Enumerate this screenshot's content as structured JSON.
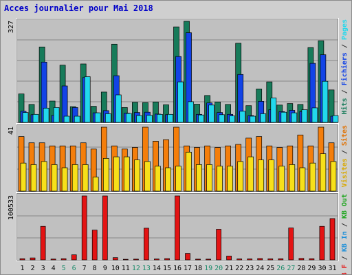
{
  "title": "Acces journalier pour Mai 2018",
  "colors": {
    "title": "#0000c8",
    "background": "#cfcfcf",
    "plot": "#c0c0c0",
    "gridline": "#888888",
    "visits": "#177b5a",
    "pages": "#1243e6",
    "hits": "#22d8ec",
    "files": "#22d8ec",
    "sites": "#f7e01a",
    "kb_f": "#e31313",
    "kb_in": "#1d8fd8",
    "kb_out": "#1ea51e",
    "weekend_day": "#1c8b6a",
    "weekday": "#000000",
    "ylabel_visits": "#e07000",
    "ylabel_sites": "#d8a800"
  },
  "chart_data": [
    {
      "type": "bar",
      "name": "hits-panel",
      "ymax_label": "327",
      "ylim": [
        0,
        327
      ],
      "right_labels": [
        {
          "text": "Hits",
          "color": "#177b5a"
        },
        {
          "text": " / ",
          "color": "#333333"
        },
        {
          "text": "Fichiers",
          "color": "#1243e6"
        },
        {
          "text": " / ",
          "color": "#333333"
        },
        {
          "text": "Pages",
          "color": "#22d8ec"
        }
      ],
      "categories": [
        "1",
        "2",
        "3",
        "4",
        "5",
        "6",
        "7",
        "8",
        "9",
        "10",
        "11",
        "12",
        "13",
        "14",
        "15",
        "16",
        "17",
        "18",
        "19",
        "20",
        "21",
        "22",
        "23",
        "24",
        "25",
        "26",
        "27",
        "28",
        "29",
        "30",
        "31"
      ],
      "series": [
        {
          "key": "hits",
          "color": "#177b5a",
          "values": [
            92,
            58,
            244,
            69,
            185,
            51,
            189,
            52,
            98,
            253,
            48,
            65,
            64,
            66,
            57,
            309,
            327,
            59,
            87,
            66,
            58,
            256,
            54,
            108,
            131,
            56,
            61,
            58,
            242,
            264,
            105
          ]
        },
        {
          "key": "files",
          "color": "#1243e6",
          "values": [
            36,
            25,
            195,
            23,
            118,
            48,
            145,
            31,
            38,
            151,
            30,
            32,
            33,
            27,
            25,
            213,
            290,
            26,
            63,
            32,
            26,
            155,
            22,
            68,
            41,
            35,
            39,
            35,
            191,
            219,
            20
          ]
        },
        {
          "key": "pages",
          "color": "#22d8ec",
          "values": [
            32,
            26,
            46,
            48,
            20,
            20,
            148,
            31,
            28,
            89,
            29,
            22,
            23,
            26,
            26,
            131,
            67,
            24,
            56,
            25,
            21,
            36,
            20,
            28,
            79,
            33,
            31,
            41,
            47,
            133,
            22
          ]
        }
      ]
    },
    {
      "type": "bar",
      "name": "visits-panel",
      "ymax_label": "41",
      "ylim": [
        0,
        41
      ],
      "right_labels": [
        {
          "text": "Visites",
          "color": "#d8a800"
        },
        {
          "text": " / ",
          "color": "#333333"
        },
        {
          "text": "Sites",
          "color": "#e07000"
        }
      ],
      "categories": [
        "1",
        "2",
        "3",
        "4",
        "5",
        "6",
        "7",
        "8",
        "9",
        "10",
        "11",
        "12",
        "13",
        "14",
        "15",
        "16",
        "17",
        "18",
        "19",
        "20",
        "21",
        "22",
        "23",
        "24",
        "25",
        "26",
        "27",
        "28",
        "29",
        "30",
        "31"
      ],
      "series": [
        {
          "key": "visits",
          "color": "#f47e0b",
          "values": [
            35,
            31,
            31,
            29,
            29,
            29,
            31,
            27,
            41,
            29,
            27,
            28,
            41,
            32,
            33,
            41,
            29,
            28,
            29,
            28,
            29,
            30,
            34,
            35,
            29,
            28,
            29,
            36,
            29,
            41,
            31
          ]
        },
        {
          "key": "sites",
          "color": "#f7e01a",
          "values": [
            18,
            17,
            19,
            17,
            15,
            17,
            17,
            9,
            21,
            22,
            22,
            20,
            19,
            16,
            15,
            16,
            25,
            17,
            17,
            16,
            16,
            19,
            22,
            20,
            20,
            16,
            17,
            15,
            18,
            24,
            19
          ]
        }
      ]
    },
    {
      "type": "bar",
      "name": "kb-panel",
      "ymax_label": "100533",
      "ylim": [
        0,
        100533
      ],
      "right_labels": [
        {
          "text": "KB F",
          "color": "#e31313"
        },
        {
          "text": " / ",
          "color": "#333333"
        },
        {
          "text": "KB In",
          "color": "#1d8fd8"
        },
        {
          "text": " / ",
          "color": "#333333"
        },
        {
          "text": "KB Out",
          "color": "#1ea51e"
        }
      ],
      "categories": [
        "1",
        "2",
        "3",
        "4",
        "5",
        "6",
        "7",
        "8",
        "9",
        "10",
        "11",
        "12",
        "13",
        "14",
        "15",
        "16",
        "17",
        "18",
        "19",
        "20",
        "21",
        "22",
        "23",
        "24",
        "25",
        "26",
        "27",
        "28",
        "29",
        "30",
        "31"
      ],
      "series": [
        {
          "key": "kb",
          "color": "#e31313",
          "values": [
            1800,
            3100,
            52800,
            1300,
            1800,
            8000,
            100533,
            46800,
            100533,
            3600,
            1000,
            1200,
            49800,
            1400,
            2000,
            100533,
            10200,
            1200,
            1200,
            48100,
            6000,
            1500,
            1500,
            2200,
            1600,
            1700,
            50300,
            2400,
            1800,
            52800,
            65000
          ]
        }
      ]
    }
  ]
}
